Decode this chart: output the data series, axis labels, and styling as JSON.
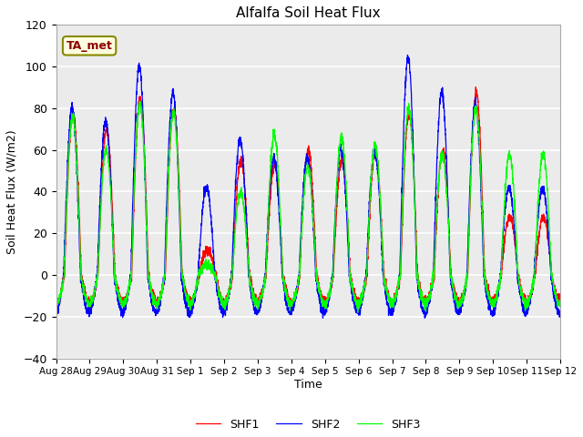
{
  "title": "Alfalfa Soil Heat Flux",
  "ylabel": "Soil Heat Flux (W/m2)",
  "xlabel": "Time",
  "ylim": [
    -40,
    120
  ],
  "xlim": [
    0,
    360
  ],
  "annotation_text": "TA_met",
  "line_colors": [
    "red",
    "blue",
    "lime"
  ],
  "line_labels": [
    "SHF1",
    "SHF2",
    "SHF3"
  ],
  "xtick_positions": [
    0,
    24,
    48,
    72,
    96,
    120,
    144,
    168,
    192,
    216,
    240,
    264,
    288,
    312,
    336,
    360
  ],
  "xtick_labels": [
    "Aug 28",
    "Aug 29",
    "Aug 30",
    "Aug 31",
    "Sep 1",
    "Sep 2",
    "Sep 3",
    "Sep 4",
    "Sep 5",
    "Sep 6",
    "Sep 7",
    "Sep 8",
    "Sep 9",
    "Sep 10",
    "Sep 11",
    "Sep 12"
  ],
  "ytick_positions": [
    -40,
    -20,
    0,
    20,
    40,
    60,
    80,
    100,
    120
  ],
  "plot_bg_color": "#ebebeb",
  "daily_amps_shf1": [
    78,
    70,
    85,
    80,
    12,
    55,
    53,
    60,
    55,
    59,
    78,
    60,
    88,
    28
  ],
  "daily_amps_shf2": [
    80,
    74,
    100,
    87,
    42,
    65,
    56,
    56,
    60,
    60,
    104,
    88,
    82,
    42
  ],
  "daily_amps_shf3": [
    76,
    60,
    82,
    78,
    5,
    40,
    67,
    52,
    66,
    62,
    80,
    58,
    80,
    58
  ]
}
